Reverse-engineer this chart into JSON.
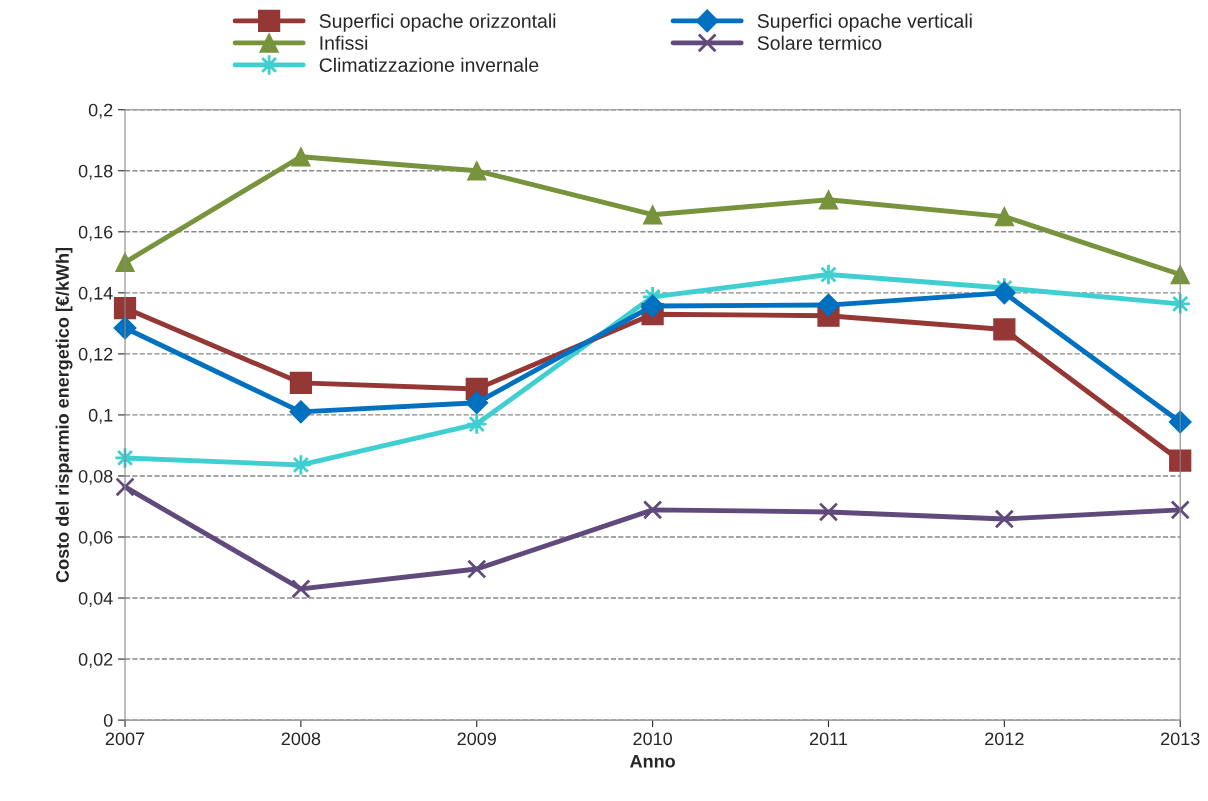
{
  "chart_data": {
    "type": "line",
    "xlabel": "Anno",
    "ylabel": "Costo del risparmio energetico [€/kWh]",
    "x": [
      2007,
      2008,
      2009,
      2010,
      2011,
      2012,
      2013
    ],
    "series": [
      {
        "name": "Superfici opache orizzontali",
        "color": "#953735",
        "marker": "square",
        "values": [
          0.135,
          0.1105,
          0.1085,
          0.133,
          0.1325,
          0.128,
          0.085
        ]
      },
      {
        "name": "Superfici opache verticali",
        "color": "#0070c0",
        "marker": "diamond",
        "values": [
          0.1285,
          0.101,
          0.104,
          0.1357,
          0.136,
          0.14,
          0.0977
        ]
      },
      {
        "name": "Infissi",
        "color": "#77933c",
        "marker": "triangle",
        "values": [
          0.15,
          0.1846,
          0.18,
          0.1656,
          0.1705,
          0.165,
          0.146
        ]
      },
      {
        "name": "Solare termico",
        "color": "#604a7b",
        "marker": "cross",
        "values": [
          0.0764,
          0.043,
          0.0495,
          0.0689,
          0.0682,
          0.0659,
          0.0689
        ]
      },
      {
        "name": "Climatizzazione invernale",
        "color": "#3fcfd0",
        "marker": "star",
        "values": [
          0.0859,
          0.0836,
          0.097,
          0.1387,
          0.146,
          0.1416,
          0.1364
        ]
      }
    ],
    "xlim": [
      2007,
      2013
    ],
    "xticks": [
      2007,
      2008,
      2009,
      2010,
      2011,
      2012,
      2013
    ],
    "ylim": [
      0,
      0.2
    ],
    "yticks": [
      0,
      {
        "value": 0.02,
        "label": "0,02"
      },
      {
        "value": 0.04,
        "label": "0,04"
      },
      {
        "value": 0.06,
        "label": "0,06"
      },
      {
        "value": 0.08,
        "label": "0,08"
      },
      {
        "value": 0.1,
        "label": "0,1"
      },
      {
        "value": 0.12,
        "label": "0,12"
      },
      {
        "value": 0.14,
        "label": "0,14"
      },
      {
        "value": 0.16,
        "label": "0,16"
      },
      {
        "value": 0.18,
        "label": "0,18"
      },
      {
        "value": 0.2,
        "label": "0,2"
      }
    ],
    "grid": "y",
    "legend": "top",
    "line_style": "solid"
  }
}
